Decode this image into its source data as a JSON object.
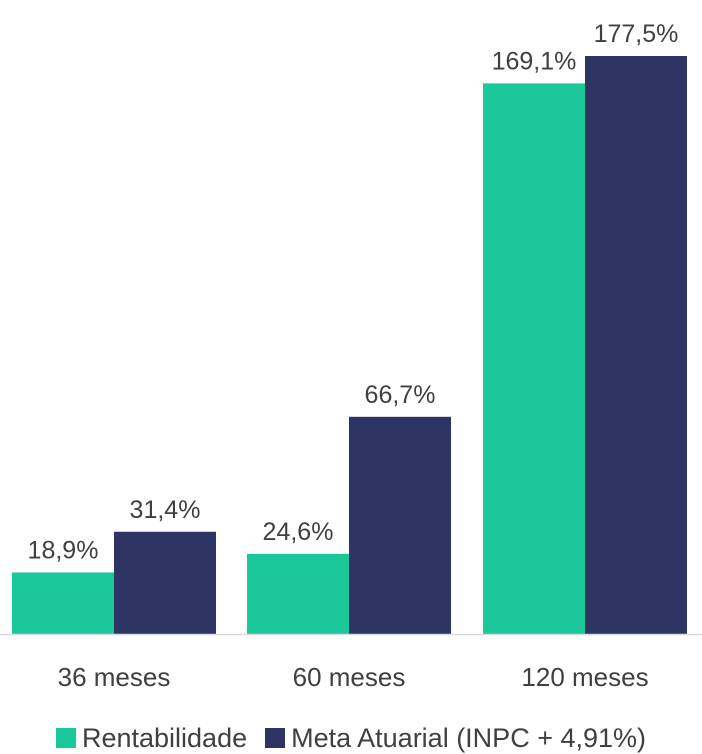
{
  "chart_data": {
    "type": "bar",
    "categories": [
      "36 meses",
      "60 meses",
      "120 meses"
    ],
    "series": [
      {
        "name": "Rentabilidade",
        "values": [
          18.9,
          24.6,
          169.1
        ],
        "labels": [
          "18,9%",
          "24,6%",
          "169,1%"
        ],
        "color": "#1BC89A"
      },
      {
        "name": "Meta Atuarial (INPC + 4,91%)",
        "values": [
          31.4,
          66.7,
          177.5
        ],
        "labels": [
          "31,4%",
          "66,7%",
          "177,5%"
        ],
        "color": "#2E3564"
      }
    ],
    "ylim": [
      0,
      177.5
    ],
    "grid": false,
    "legend": "bottom",
    "axis_color": "#D9D9D9",
    "text_color": "#404040"
  }
}
